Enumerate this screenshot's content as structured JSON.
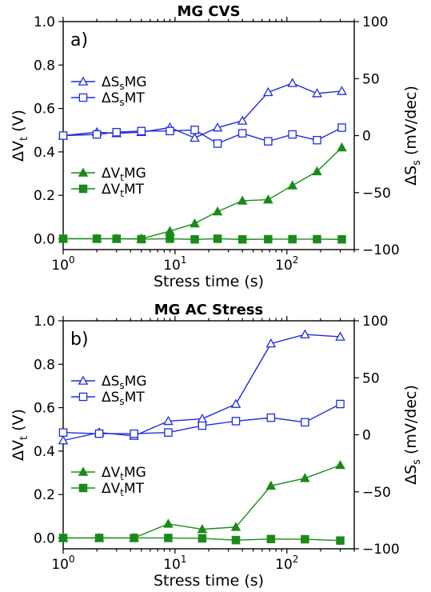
{
  "colors": {
    "blue": "#1f2ce0",
    "green": "#1a8a1a"
  },
  "chart_data": [
    {
      "type": "line",
      "title": "MG CVS",
      "panel_label": "a)",
      "xlabel": "Stress time (s)",
      "ylabel_left": "ΔV",
      "ylabel_left_sub": "t",
      "ylabel_left_unit": " (V)",
      "ylabel_right": "ΔS",
      "ylabel_right_sub": "s",
      "ylabel_right_unit": " (mV/dec)",
      "x_scale": "log",
      "xlim": [
        1,
        400
      ],
      "ylim_left": [
        -0.05,
        1.0
      ],
      "ylim_right": [
        -100,
        100
      ],
      "x_ticks": [
        {
          "v": 1,
          "base": "10",
          "exp": "0"
        },
        {
          "v": 10,
          "base": "10",
          "exp": "1"
        },
        {
          "v": 100,
          "base": "10",
          "exp": "2"
        }
      ],
      "yticks_left": [
        "0.0",
        "0.2",
        "0.4",
        "0.6",
        "0.8",
        "1.0"
      ],
      "yticks_right": [
        "−100",
        "−50",
        "0",
        "50",
        "100"
      ],
      "series": [
        {
          "name": "ΔSsMG",
          "label_main": "ΔS",
          "label_sub": "s",
          "label_tail": "MG",
          "axis": "right",
          "marker": "triangle-open",
          "color": "blue",
          "x": [
            1,
            2,
            3,
            5,
            9,
            15,
            24,
            40,
            68,
            112,
            186,
            310
          ],
          "y": [
            0,
            3,
            2,
            3,
            7,
            -2,
            7,
            13,
            38,
            46,
            37,
            39
          ]
        },
        {
          "name": "ΔSsMT",
          "label_main": "ΔS",
          "label_sub": "s",
          "label_tail": "MT",
          "axis": "right",
          "marker": "square-open",
          "color": "blue",
          "x": [
            1,
            2,
            3,
            5,
            9,
            15,
            24,
            40,
            68,
            112,
            186,
            310
          ],
          "y": [
            0,
            1,
            3,
            4,
            4,
            5,
            -7,
            2,
            -5,
            1,
            -4,
            7
          ]
        },
        {
          "name": "ΔVtMG",
          "label_main": "ΔV",
          "label_sub": "t",
          "label_tail": "MG",
          "axis": "left",
          "marker": "triangle-filled",
          "color": "green",
          "x": [
            1,
            2,
            3,
            5,
            9,
            15,
            24,
            40,
            68,
            112,
            186,
            310
          ],
          "y": [
            0.0,
            0.0,
            0.0,
            0.0,
            0.035,
            0.07,
            0.125,
            0.175,
            0.18,
            0.245,
            0.31,
            0.42
          ]
        },
        {
          "name": "ΔVtMT",
          "label_main": "ΔV",
          "label_sub": "t",
          "label_tail": "MT",
          "axis": "left",
          "marker": "square-filled",
          "color": "green",
          "x": [
            1,
            2,
            3,
            5,
            9,
            15,
            24,
            40,
            68,
            112,
            186,
            310
          ],
          "y": [
            0.0,
            0.0,
            0.0,
            -0.002,
            0.0,
            -0.003,
            0.0,
            -0.003,
            -0.002,
            -0.002,
            -0.002,
            -0.003
          ]
        }
      ]
    },
    {
      "type": "line",
      "title": "MG AC Stress",
      "panel_label": "b)",
      "xlabel": "Stress time (s)",
      "ylabel_left": "ΔV",
      "ylabel_left_sub": "t",
      "ylabel_left_unit": " (V)",
      "ylabel_right": "ΔS",
      "ylabel_right_sub": "s",
      "ylabel_right_unit": " (mV/dec)",
      "x_scale": "log",
      "xlim": [
        1,
        400
      ],
      "ylim_left": [
        -0.05,
        1.0
      ],
      "ylim_right": [
        -100,
        100
      ],
      "x_ticks": [
        {
          "v": 1,
          "base": "10",
          "exp": "0"
        },
        {
          "v": 10,
          "base": "10",
          "exp": "1"
        },
        {
          "v": 100,
          "base": "10",
          "exp": "2"
        }
      ],
      "yticks_left": [
        "0.0",
        "0.2",
        "0.4",
        "0.6",
        "0.8",
        "1.0"
      ],
      "yticks_right": [
        "−100",
        "−50",
        "0",
        "50",
        "100"
      ],
      "series": [
        {
          "name": "ΔSsMG",
          "label_main": "ΔS",
          "label_sub": "s",
          "label_tail": "MG",
          "axis": "right",
          "marker": "triangle-open",
          "color": "blue",
          "x": [
            1,
            2.1,
            4.3,
            8.7,
            17.5,
            35,
            72,
            145,
            300
          ],
          "y": [
            -5,
            2,
            -1,
            12,
            14,
            27,
            80,
            88,
            86
          ]
        },
        {
          "name": "ΔSsMT",
          "label_main": "ΔS",
          "label_sub": "s",
          "label_tail": "MT",
          "axis": "right",
          "marker": "square-open",
          "color": "blue",
          "x": [
            1,
            2.1,
            4.3,
            8.7,
            17.5,
            35,
            72,
            145,
            300
          ],
          "y": [
            2,
            1,
            1,
            2,
            8,
            12,
            15,
            11,
            27
          ]
        },
        {
          "name": "ΔVtMG",
          "label_main": "ΔV",
          "label_sub": "t",
          "label_tail": "MG",
          "axis": "left",
          "marker": "triangle-filled",
          "color": "green",
          "x": [
            1,
            2.1,
            4.3,
            8.7,
            17.5,
            35,
            72,
            145,
            300
          ],
          "y": [
            0.0,
            0.0,
            0.0,
            0.065,
            0.04,
            0.05,
            0.24,
            0.275,
            0.335
          ]
        },
        {
          "name": "ΔVtMT",
          "label_main": "ΔV",
          "label_sub": "t",
          "label_tail": "MT",
          "axis": "left",
          "marker": "square-filled",
          "color": "green",
          "x": [
            1,
            2.1,
            4.3,
            8.7,
            17.5,
            35,
            72,
            145,
            300
          ],
          "y": [
            0.0,
            0.0,
            0.0,
            0.0,
            -0.002,
            -0.01,
            -0.005,
            -0.006,
            -0.012
          ]
        }
      ]
    }
  ]
}
